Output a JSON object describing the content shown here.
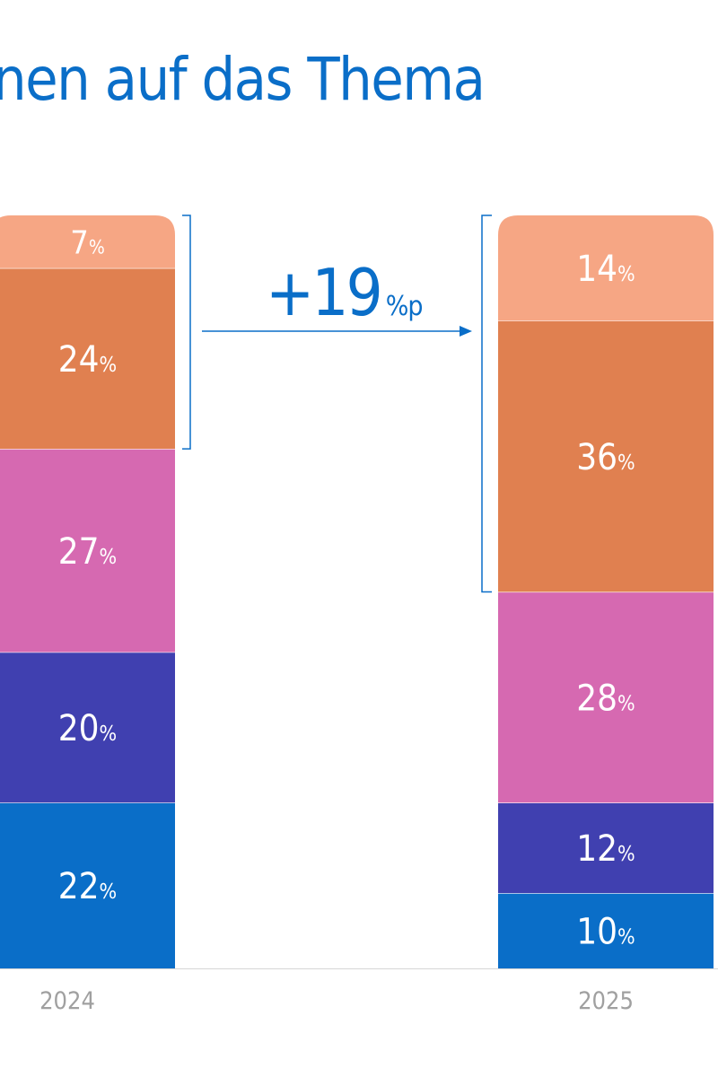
{
  "title": "nen auf das Thema",
  "chart_data": {
    "type": "bar",
    "stacked": true,
    "categories": [
      "2024",
      "2025"
    ],
    "series": [
      {
        "values": [
          22,
          10
        ],
        "color": "#0a6ec8"
      },
      {
        "values": [
          20,
          12
        ],
        "color": "#4040b0"
      },
      {
        "values": [
          27,
          28
        ],
        "color": "#d669b1"
      },
      {
        "values": [
          24,
          36
        ],
        "color": "#e08050"
      },
      {
        "values": [
          7,
          14
        ],
        "color": "#f6a684"
      }
    ],
    "unit": "%",
    "annotation": {
      "value": "+19",
      "unit": "%p",
      "color": "#0a6ec8"
    },
    "value_label_color": "#ffffff",
    "axis_label_color": "#a0a0a0"
  }
}
